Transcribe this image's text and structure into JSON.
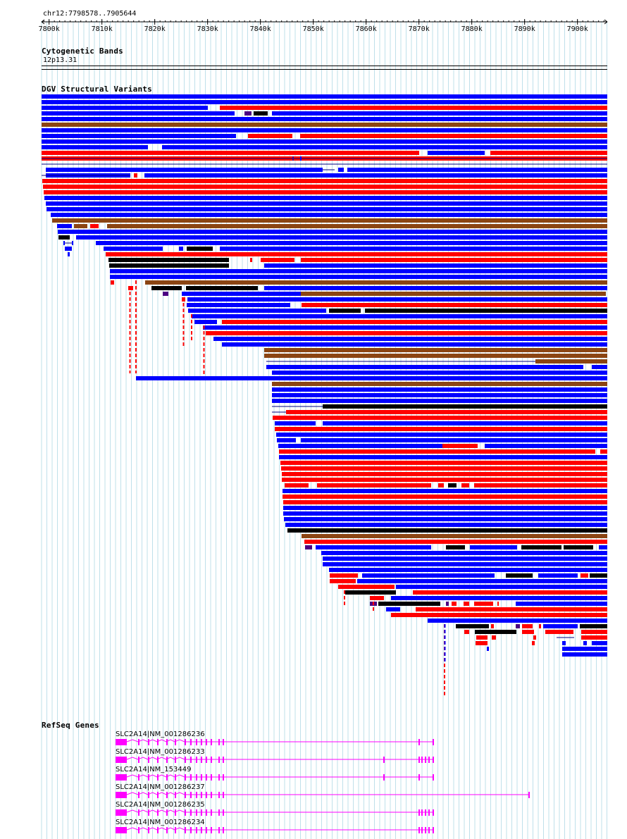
{
  "browser": {
    "location": "chr12:7798578..7905644",
    "chrom": "chr12",
    "start": 7798578,
    "end": 7905644,
    "ruler_ticks": [
      "7800k",
      "7810k",
      "7820k",
      "7830k",
      "7840k",
      "7850k",
      "7860k",
      "7870k",
      "7880k",
      "7890k",
      "7900k"
    ],
    "ruler_tick_values": [
      7800000,
      7810000,
      7820000,
      7830000,
      7840000,
      7850000,
      7860000,
      7870000,
      7880000,
      7890000,
      7900000
    ]
  },
  "tracks": {
    "cytobands": {
      "title": "Cytogenetic Bands",
      "band": "12p13.31"
    },
    "dgv": {
      "title": "DGV Structural Variants",
      "legend_colors": {
        "gain": "#ff0000",
        "loss": "#0000ff",
        "inversion": "#8b4513",
        "complex": "#000000",
        "gain_loss": "#4b0082"
      }
    },
    "refseq": {
      "title": "RefSeq Genes",
      "gene_color": "#ff00ff",
      "genes": [
        {
          "label": "SLC2A14|NM_001286236"
        },
        {
          "label": "SLC2A14|NM_001286233"
        },
        {
          "label": "SLC2A14|NM_153449"
        },
        {
          "label": "SLC2A14|NM_001286237"
        },
        {
          "label": "SLC2A14|NM_001286235"
        },
        {
          "label": "SLC2A14|NM_001286234"
        }
      ]
    }
  }
}
